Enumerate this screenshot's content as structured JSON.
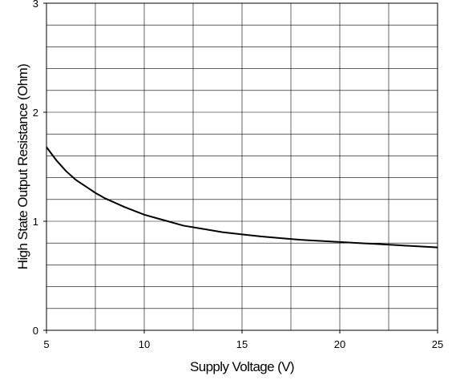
{
  "chart_data": {
    "type": "line",
    "xlabel": "Supply Voltage (V)",
    "ylabel": "High State Output Resistance (Ohm)",
    "xlim": [
      5,
      25
    ],
    "ylim": [
      0,
      3
    ],
    "x_ticks": [
      "5",
      "10",
      "15",
      "20",
      "25"
    ],
    "y_ticks": [
      "0",
      "1",
      "2",
      "3"
    ],
    "grid": true,
    "x_minor_step": 2.5,
    "y_minor_step": 0.2,
    "series": [
      {
        "color": "#000000",
        "points": [
          [
            5,
            1.68
          ],
          [
            5.5,
            1.56
          ],
          [
            6,
            1.46
          ],
          [
            6.5,
            1.38
          ],
          [
            7,
            1.32
          ],
          [
            7.5,
            1.26
          ],
          [
            8,
            1.21
          ],
          [
            9,
            1.13
          ],
          [
            10,
            1.06
          ],
          [
            11,
            1.01
          ],
          [
            12,
            0.96
          ],
          [
            13,
            0.93
          ],
          [
            14,
            0.9
          ],
          [
            15,
            0.88
          ],
          [
            16,
            0.86
          ],
          [
            17,
            0.845
          ],
          [
            18,
            0.83
          ],
          [
            19,
            0.82
          ],
          [
            20,
            0.81
          ],
          [
            21,
            0.8
          ],
          [
            22,
            0.79
          ],
          [
            23,
            0.78
          ],
          [
            24,
            0.77
          ],
          [
            25,
            0.76
          ]
        ]
      }
    ]
  }
}
